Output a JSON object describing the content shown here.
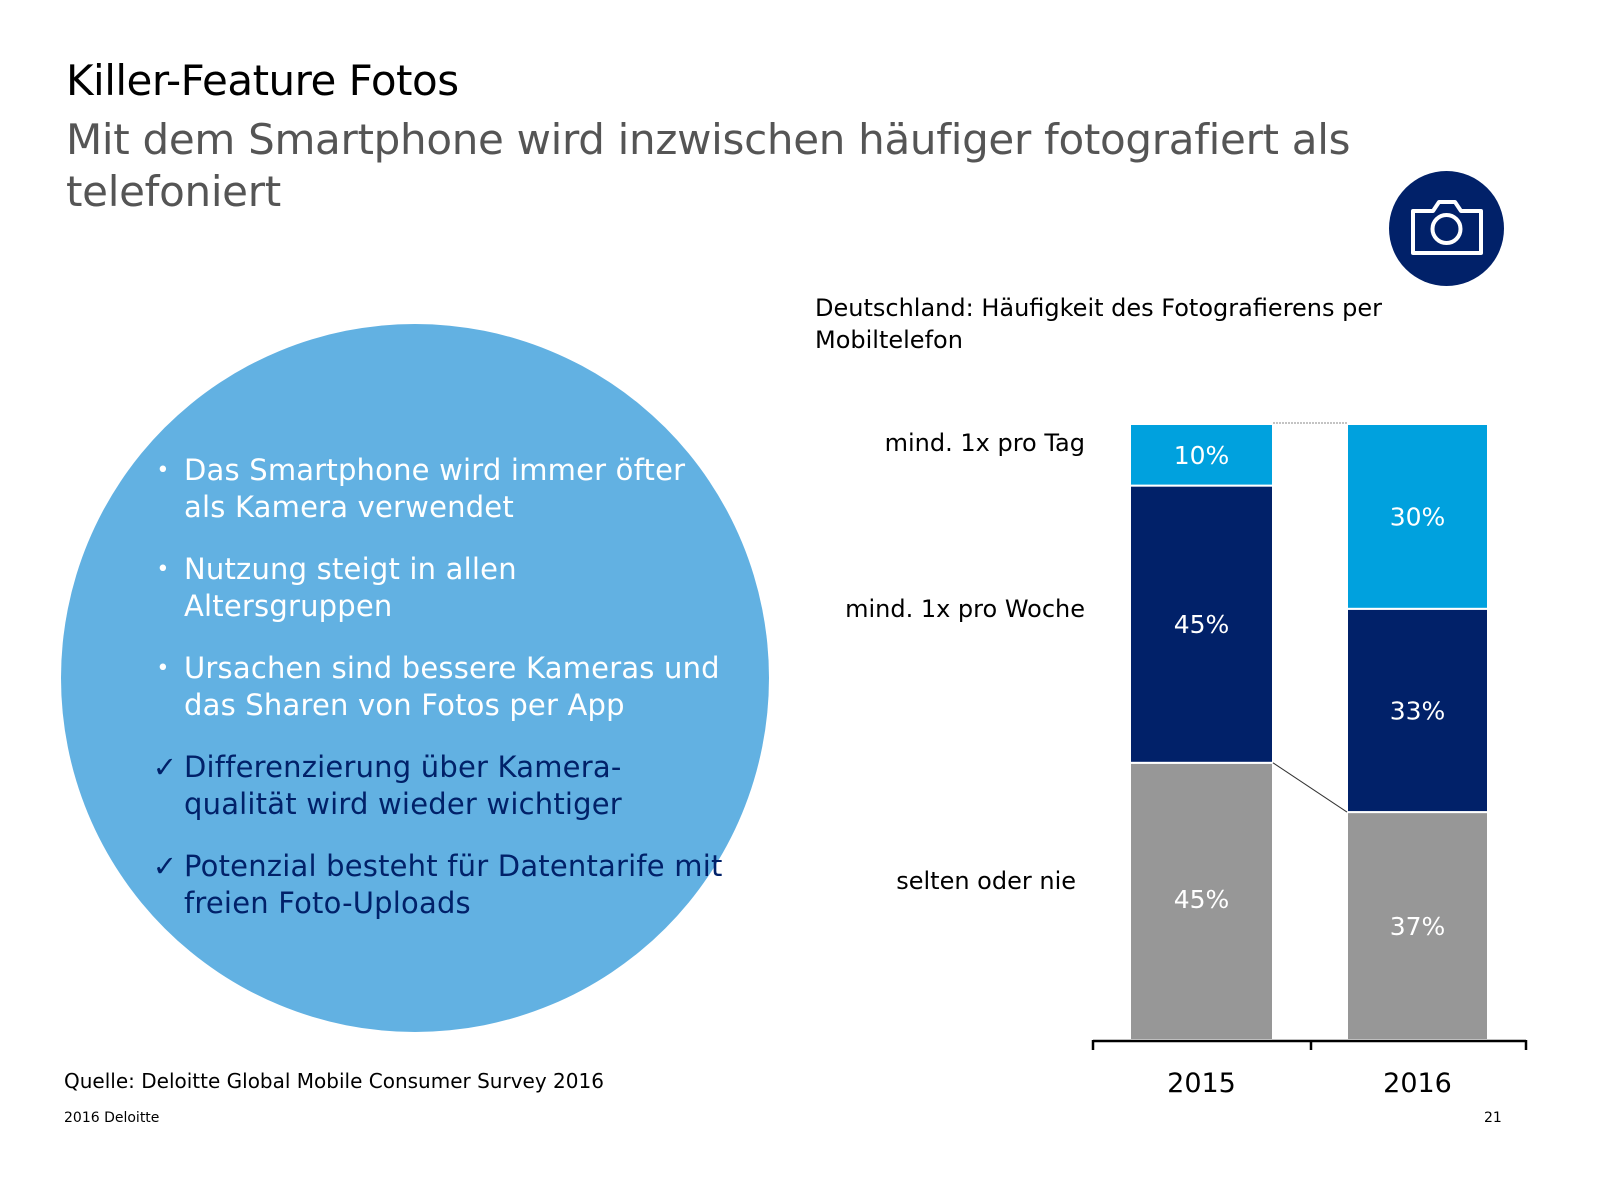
{
  "header": {
    "title": "Killer-Feature Fotos",
    "subtitle": "Mit dem Smartphone wird inzwischen häufiger fotografiert als telefoniert",
    "badge_icon": "camera-icon"
  },
  "bullets": [
    {
      "type": "bullet",
      "marker": "•",
      "text": "Das Smartphone wird immer öfter als Kamera verwendet"
    },
    {
      "type": "bullet",
      "marker": "•",
      "text": "Nutzung steigt in allen Altersgruppen"
    },
    {
      "type": "bullet",
      "marker": "•",
      "text": "Ursachen sind bessere Kameras und das Sharen von Fotos per App"
    },
    {
      "type": "check",
      "marker": "✓",
      "text": "Differenzierung über Kamera-qualität wird wieder wichtiger"
    },
    {
      "type": "check",
      "marker": "✓",
      "text": "Potenzial besteht für Datentarife mit freien Foto-Uploads"
    }
  ],
  "colors": {
    "circle": "#62b1e2",
    "badge": "#012169",
    "daily": "#00a1de",
    "weekly": "#012169",
    "rarely": "#979797",
    "check_text": "#012169"
  },
  "chart_data": {
    "type": "bar",
    "stacked": true,
    "title": "Deutschland: Häufigkeit des Fotografierens per Mobiltelefon",
    "categories": [
      "2015",
      "2016"
    ],
    "series": [
      {
        "name": "selten oder nie",
        "values": [
          45,
          37
        ],
        "labels": [
          "45%",
          "37%"
        ],
        "color": "#979797"
      },
      {
        "name": "mind. 1x pro Woche",
        "values": [
          45,
          33
        ],
        "labels": [
          "45%",
          "33%"
        ],
        "color": "#012169"
      },
      {
        "name": "mind. 1x pro Tag",
        "values": [
          10,
          30
        ],
        "labels": [
          "10%",
          "30%"
        ],
        "color": "#00a1de"
      }
    ],
    "ylim": [
      0,
      100
    ],
    "unit": "%",
    "xlabel": "",
    "ylabel": "",
    "grid": false,
    "legend": "left (category labels beside 2015 bar)",
    "connector_lines": true
  },
  "footer": {
    "source": "Quelle: Deloitte Global Mobile Consumer Survey 2016",
    "copyright": "2016 Deloitte",
    "page": "21"
  }
}
